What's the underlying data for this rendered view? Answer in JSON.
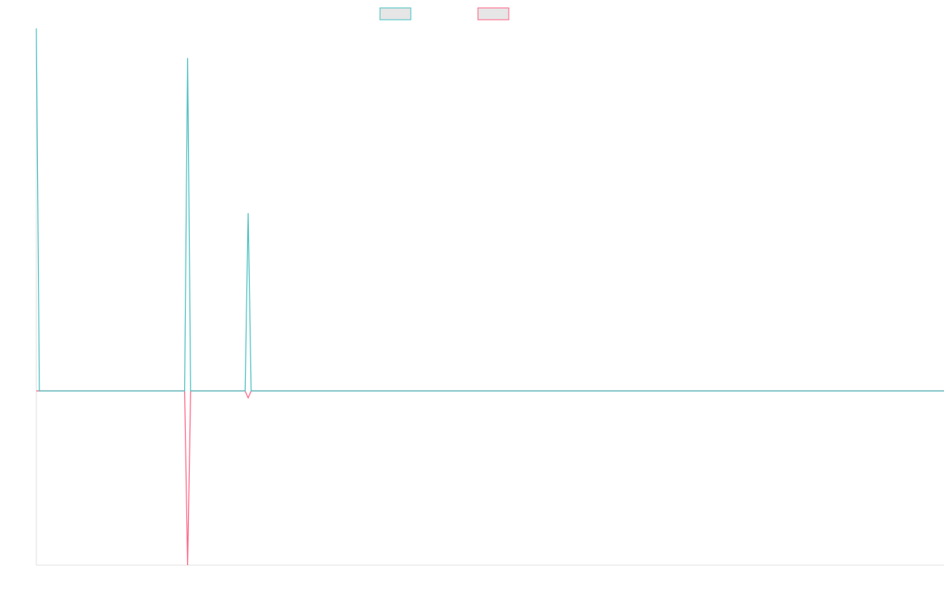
{
  "chart_data": {
    "type": "line",
    "x": [
      0,
      1,
      32,
      49,
      50,
      51,
      69,
      70,
      71,
      300
    ],
    "series": [
      {
        "color": "#4bc0c0",
        "values": [
          208,
          0,
          0,
          0,
          191,
          0,
          0,
          102,
          0,
          0
        ]
      },
      {
        "color": "#ff6384",
        "values": [
          0,
          0,
          0,
          0,
          -100,
          0,
          0,
          -4,
          0,
          0
        ]
      }
    ],
    "xlim": [
      0,
      300
    ],
    "ylim": [
      -100,
      208
    ]
  }
}
